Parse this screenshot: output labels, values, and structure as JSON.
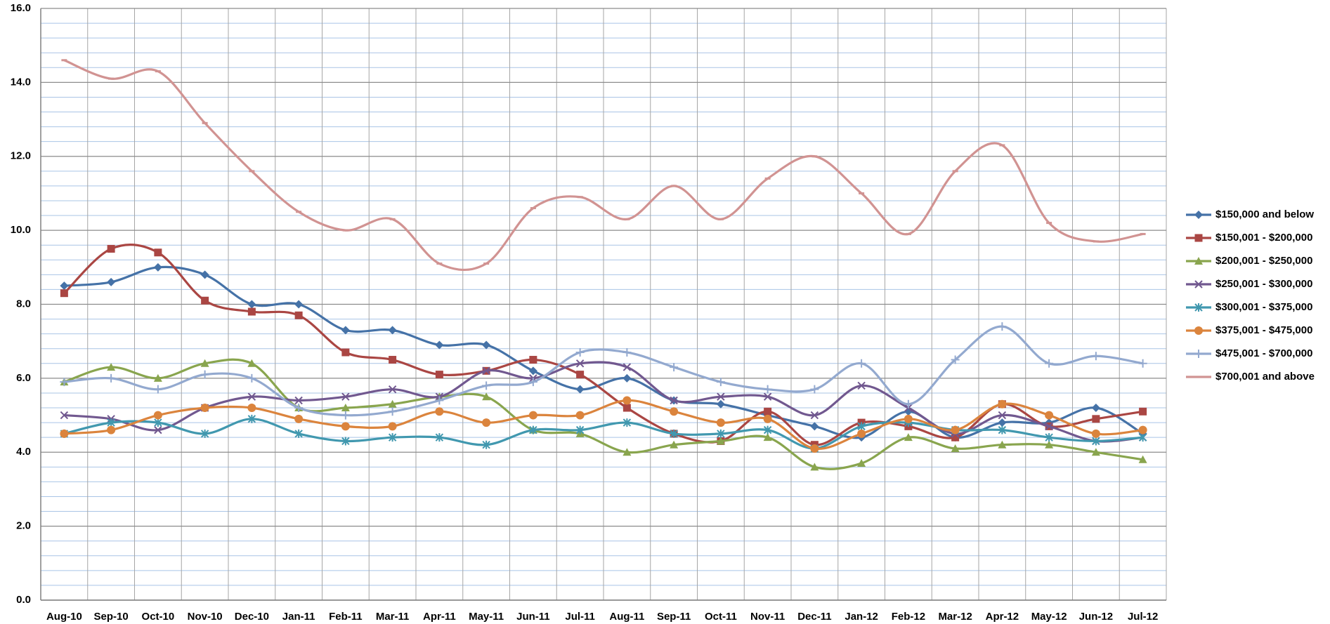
{
  "chart_data": {
    "type": "line",
    "smooth": true,
    "legend": "right",
    "grid": true,
    "categories": [
      "Aug-10",
      "Sep-10",
      "Oct-10",
      "Nov-10",
      "Dec-10",
      "Jan-11",
      "Feb-11",
      "Mar-11",
      "Apr-11",
      "May-11",
      "Jun-11",
      "Jul-11",
      "Aug-11",
      "Sep-11",
      "Oct-11",
      "Nov-11",
      "Dec-11",
      "Jan-12",
      "Feb-12",
      "Mar-12",
      "Apr-12",
      "May-12",
      "Jun-12",
      "Jul-12"
    ],
    "ylim": [
      0,
      16
    ],
    "yticks": [
      {
        "value": 0,
        "label": "0.0"
      },
      {
        "value": 2,
        "label": "2.0"
      },
      {
        "value": 4,
        "label": "4.0"
      },
      {
        "value": 6,
        "label": "6.0"
      },
      {
        "value": 8,
        "label": "8.0"
      },
      {
        "value": 10,
        "label": "10.0"
      },
      {
        "value": 12,
        "label": "12.0"
      },
      {
        "value": 14,
        "label": "14.0"
      },
      {
        "value": 16,
        "label": "16.0"
      }
    ],
    "series": [
      {
        "name": "$150,000 and below",
        "color": "#4572a7",
        "marker": "diamond",
        "values": [
          8.5,
          8.6,
          9.0,
          8.8,
          8.0,
          8.0,
          7.3,
          7.3,
          6.9,
          6.9,
          6.2,
          5.7,
          6.0,
          5.4,
          5.3,
          5.0,
          4.7,
          4.4,
          5.1,
          4.4,
          4.8,
          4.8,
          5.2,
          4.5
        ]
      },
      {
        "name": "$150,001 - $200,000",
        "color": "#aa4643",
        "marker": "square",
        "values": [
          8.3,
          9.5,
          9.4,
          8.1,
          7.8,
          7.7,
          6.7,
          6.5,
          6.1,
          6.2,
          6.5,
          6.1,
          5.2,
          4.5,
          4.3,
          5.1,
          4.2,
          4.8,
          4.7,
          4.4,
          5.3,
          4.7,
          4.9,
          5.1
        ]
      },
      {
        "name": "$200,001 - $250,000",
        "color": "#89a54e",
        "marker": "triangle",
        "values": [
          5.9,
          6.3,
          6.0,
          6.4,
          6.4,
          5.2,
          5.2,
          5.3,
          5.5,
          5.5,
          4.6,
          4.5,
          4.0,
          4.2,
          4.3,
          4.4,
          3.6,
          3.7,
          4.4,
          4.1,
          4.2,
          4.2,
          4.0,
          3.8
        ]
      },
      {
        "name": "$250,001 - $300,000",
        "color": "#71588f",
        "marker": "x",
        "values": [
          5.0,
          4.9,
          4.6,
          5.2,
          5.5,
          5.4,
          5.5,
          5.7,
          5.5,
          6.2,
          6.0,
          6.4,
          6.3,
          5.4,
          5.5,
          5.5,
          5.0,
          5.8,
          5.2,
          4.5,
          5.0,
          4.7,
          4.3,
          4.4
        ]
      },
      {
        "name": "$300,001 - $375,000",
        "color": "#4198af",
        "marker": "star",
        "values": [
          4.5,
          4.8,
          4.8,
          4.5,
          4.9,
          4.5,
          4.3,
          4.4,
          4.4,
          4.2,
          4.6,
          4.6,
          4.8,
          4.5,
          4.5,
          4.6,
          4.1,
          4.7,
          4.8,
          4.6,
          4.6,
          4.4,
          4.3,
          4.4
        ]
      },
      {
        "name": "$375,001 - $475,000",
        "color": "#db843d",
        "marker": "circle",
        "values": [
          4.5,
          4.6,
          5.0,
          5.2,
          5.2,
          4.9,
          4.7,
          4.7,
          5.1,
          4.8,
          5.0,
          5.0,
          5.4,
          5.1,
          4.8,
          4.9,
          4.1,
          4.5,
          4.9,
          4.6,
          5.3,
          5.0,
          4.5,
          4.6
        ]
      },
      {
        "name": "$475,001 - $700,000",
        "color": "#93a9cf",
        "marker": "plus",
        "values": [
          5.9,
          6.0,
          5.7,
          6.1,
          6.0,
          5.2,
          5.0,
          5.1,
          5.4,
          5.8,
          5.9,
          6.7,
          6.7,
          6.3,
          5.9,
          5.7,
          5.7,
          6.4,
          5.3,
          6.5,
          7.4,
          6.4,
          6.6,
          6.4
        ]
      },
      {
        "name": "$700,001 and above",
        "color": "#d19392",
        "marker": "dash",
        "values": [
          14.6,
          14.1,
          14.3,
          12.9,
          11.6,
          10.5,
          10.0,
          10.3,
          9.1,
          9.1,
          10.6,
          10.9,
          10.3,
          11.2,
          10.3,
          11.4,
          12.0,
          11.0,
          9.9,
          11.6,
          12.3,
          10.2,
          9.7,
          9.9
        ]
      }
    ]
  }
}
